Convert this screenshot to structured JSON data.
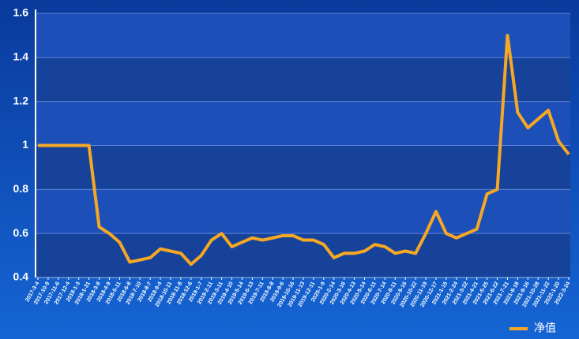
{
  "chart_data": {
    "type": "line",
    "categories": [
      "2017-3-4",
      "2017-10-9",
      "2017-11-6",
      "2017-12-4",
      "2018-1-3",
      "2018-1-31",
      "2018-3-8",
      "2018-4-9",
      "2018-5-11",
      "2018-6-8",
      "2018-7-10",
      "2018-8-7",
      "2018-9-4",
      "2018-10-11",
      "2018-11-8",
      "2018-12-6",
      "2019-1-7",
      "2019-2-11",
      "2019-3-11",
      "2019-4-10",
      "2019-5-14",
      "2019-6-13",
      "2019-7-11",
      "2019-8-8",
      "2019-9-6",
      "2019-10-16",
      "2019-11-13",
      "2019-12-11",
      "2020-1-9",
      "2020-2-14",
      "2020-3-16",
      "2020-4-13",
      "2020-5-14",
      "2020-6-11",
      "2020-7-14",
      "2020-8-11",
      "2020-9-16",
      "2020-10-22",
      "2020-11-19",
      "2020-12-17",
      "2021-1-15",
      "2021-2-24",
      "2021-3-22",
      "2021-4-21",
      "2021-5-25",
      "2021-6-22",
      "2021-7-21",
      "2021-8-18",
      "2021-9-16",
      "2021-10-28",
      "2021-11-22",
      "2022-1-20",
      "2022-3-24"
    ],
    "series": [
      {
        "name": "净值",
        "color": "#f7a823",
        "values": [
          1.0,
          1.0,
          1.0,
          1.0,
          1.0,
          1.0,
          0.63,
          0.6,
          0.56,
          0.47,
          0.48,
          0.49,
          0.53,
          0.52,
          0.51,
          0.46,
          0.5,
          0.57,
          0.6,
          0.54,
          0.56,
          0.58,
          0.57,
          0.58,
          0.59,
          0.59,
          0.57,
          0.57,
          0.55,
          0.49,
          0.51,
          0.51,
          0.52,
          0.55,
          0.54,
          0.51,
          0.52,
          0.51,
          0.6,
          0.7,
          0.6,
          0.58,
          0.6,
          0.62,
          0.78,
          0.8,
          1.5,
          1.15,
          1.08,
          1.12,
          1.16,
          1.02,
          0.96
        ]
      }
    ],
    "ylim": [
      0.4,
      1.6
    ],
    "yticks": [
      0.4,
      0.6,
      0.8,
      1,
      1.2,
      1.4,
      1.6
    ],
    "grid": true,
    "legend": "bottom-right"
  }
}
